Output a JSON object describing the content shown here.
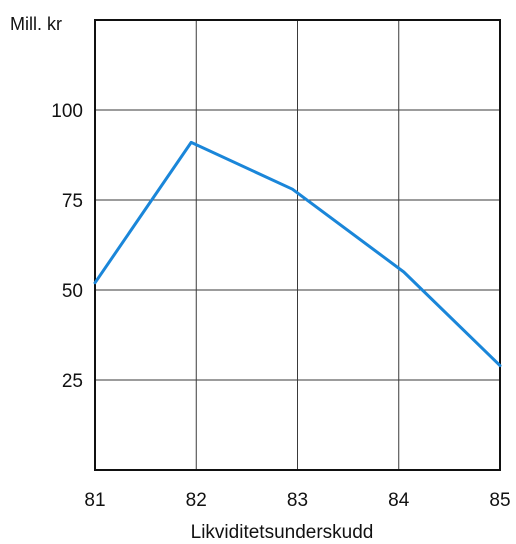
{
  "chart_data": {
    "type": "line",
    "unit_label": "Mill. kr",
    "xlabel": "Likviditetsunderskudd",
    "ylabel": "",
    "x": [
      "81",
      "82",
      "83",
      "84",
      "85"
    ],
    "x_values": [
      81,
      82,
      83,
      84,
      85
    ],
    "xlim": [
      81,
      85
    ],
    "ylim": [
      0,
      125
    ],
    "yticks": [
      25,
      50,
      75,
      100
    ],
    "grid": true,
    "series": [
      {
        "x": [
          81,
          81.95,
          82.95,
          84.05,
          85
        ],
        "values": [
          52,
          91,
          78,
          55,
          29
        ]
      }
    ],
    "colors": {
      "line": "#1a86d9",
      "frame": "#111111",
      "grid": "#3a3a3a"
    }
  }
}
